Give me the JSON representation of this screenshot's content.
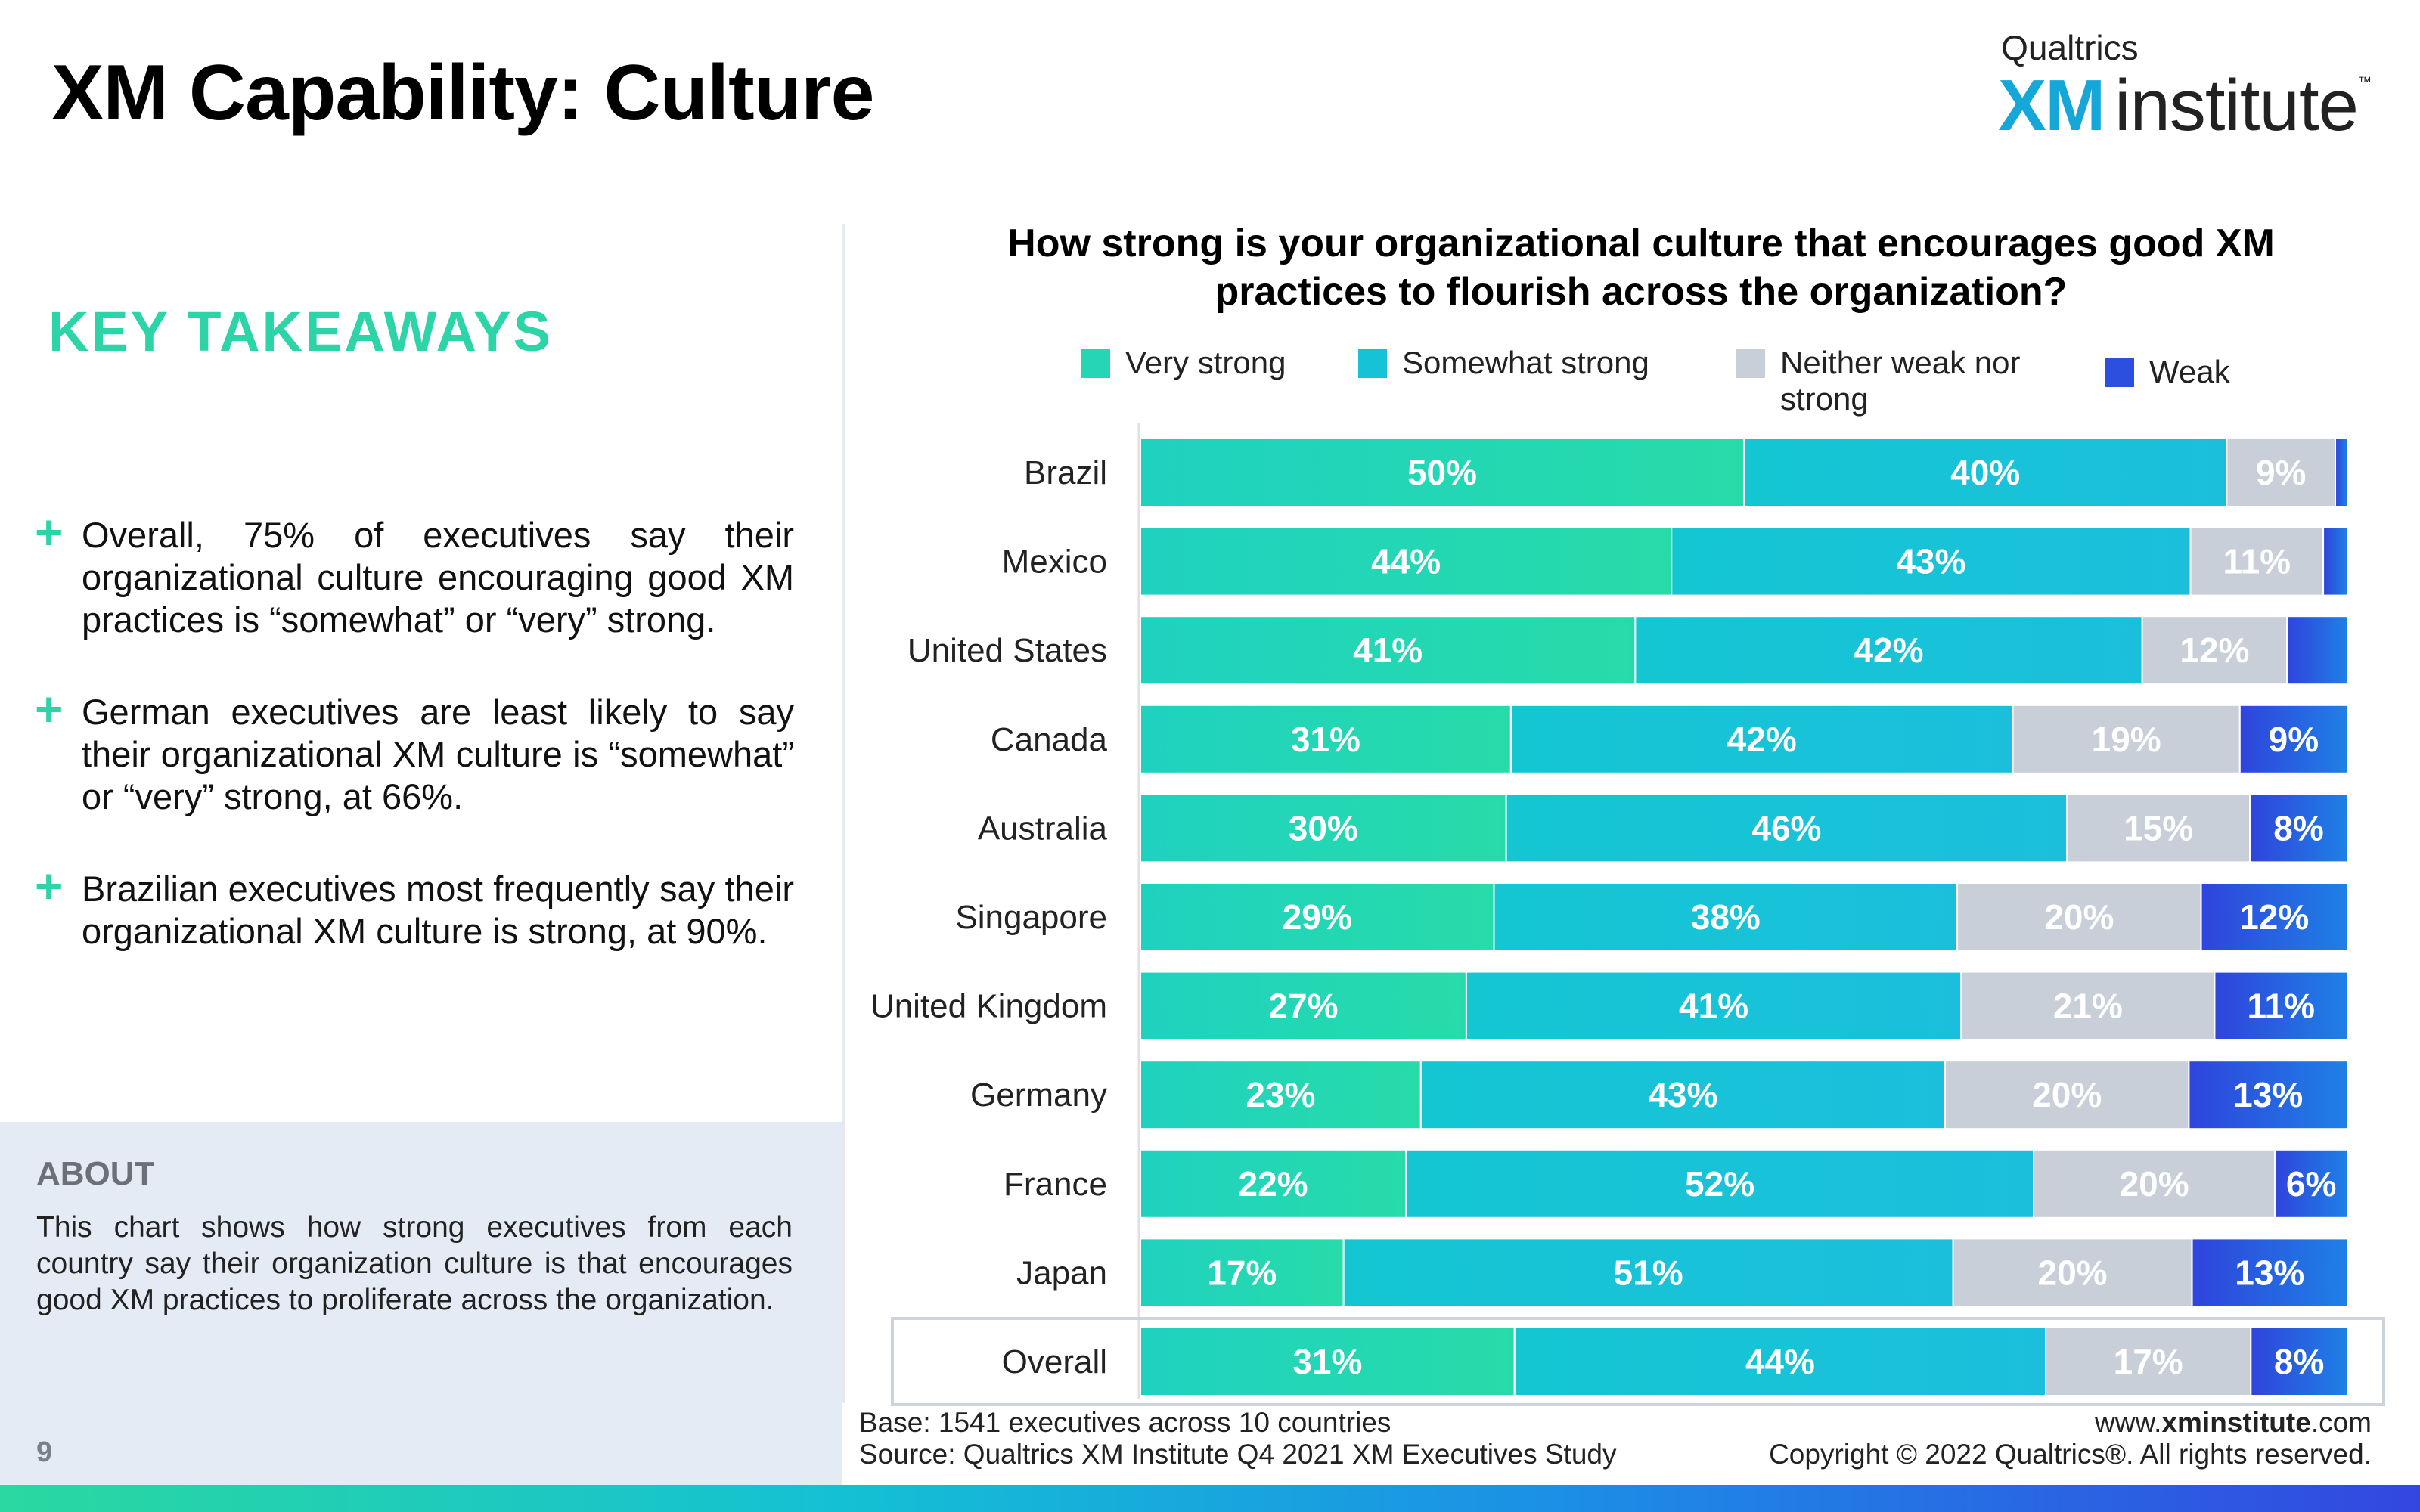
{
  "header": {
    "title": "XM Capability: Culture",
    "logo_brand": "Qualtrics",
    "logo_xm": "XM",
    "logo_institute": "institute",
    "logo_tm": "™"
  },
  "takeaways": {
    "heading": "KEY TAKEAWAYS",
    "bullet_symbol": "+",
    "items": [
      "Overall, 75% of executives say their organizational culture encouraging good XM practices is “somewhat” or “very” strong.",
      "German executives are least likely to say their organizational XM culture is “somewhat” or “very” strong, at 66%.",
      "Brazilian executives most frequently say their organizational XM culture is strong, at 90%."
    ]
  },
  "about": {
    "heading": "ABOUT",
    "text": "This chart shows how strong executives from each country say their organization culture is that encourages good XM practices to proliferate across the organization.",
    "page_number": "9"
  },
  "footer": {
    "base": "Base: 1541 executives across 10 countries",
    "source": "Source: Qualtrics XM Institute Q4 2021 XM Executives Study",
    "url_pre": "www.",
    "url_bold": "xminstitute",
    "url_post": ".com",
    "copyright": "Copyright © 2022 Qualtrics®. All rights reserved."
  },
  "colors": {
    "very_strong": "#24d6b4",
    "somewhat_strong": "#16c2d6",
    "neither": "#c8cfd8",
    "weak": "#2d4fe0",
    "accent": "#2dd4a7"
  },
  "chart_data": {
    "type": "bar",
    "orientation": "horizontal",
    "stacked": true,
    "title": "How strong is your organizational culture that encourages good XM practices to flourish across the organization?",
    "categories": [
      "Brazil",
      "Mexico",
      "United States",
      "Canada",
      "Australia",
      "Singapore",
      "United Kingdom",
      "Germany",
      "France",
      "Japan",
      "Overall"
    ],
    "series": [
      {
        "name": "Very strong",
        "color": "#24d6b4",
        "values": [
          50,
          44,
          41,
          31,
          30,
          29,
          27,
          23,
          22,
          17,
          31
        ]
      },
      {
        "name": "Somewhat strong",
        "color": "#16c2d6",
        "values": [
          40,
          43,
          42,
          42,
          46,
          38,
          41,
          43,
          52,
          51,
          44
        ]
      },
      {
        "name": "Neither weak nor strong",
        "color": "#c8cfd8",
        "values": [
          9,
          11,
          12,
          19,
          15,
          20,
          21,
          20,
          20,
          20,
          17
        ]
      },
      {
        "name": "Weak",
        "color": "#2d4fe0",
        "values": [
          1,
          2,
          5,
          9,
          8,
          12,
          11,
          13,
          6,
          13,
          8
        ]
      }
    ],
    "shown_labels": [
      [
        "50%",
        "40%",
        "9%",
        ""
      ],
      [
        "44%",
        "43%",
        "11%",
        ""
      ],
      [
        "41%",
        "42%",
        "12%",
        ""
      ],
      [
        "31%",
        "42%",
        "19%",
        "9%"
      ],
      [
        "30%",
        "46%",
        "15%",
        "8%"
      ],
      [
        "29%",
        "38%",
        "20%",
        "12%"
      ],
      [
        "27%",
        "41%",
        "21%",
        "11%"
      ],
      [
        "23%",
        "43%",
        "20%",
        "13%"
      ],
      [
        "22%",
        "52%",
        "20%",
        "6%"
      ],
      [
        "17%",
        "51%",
        "20%",
        "13%"
      ],
      [
        "31%",
        "44%",
        "17%",
        "8%"
      ]
    ],
    "highlighted_category": "Overall",
    "legend_position": "top",
    "grid": false
  }
}
